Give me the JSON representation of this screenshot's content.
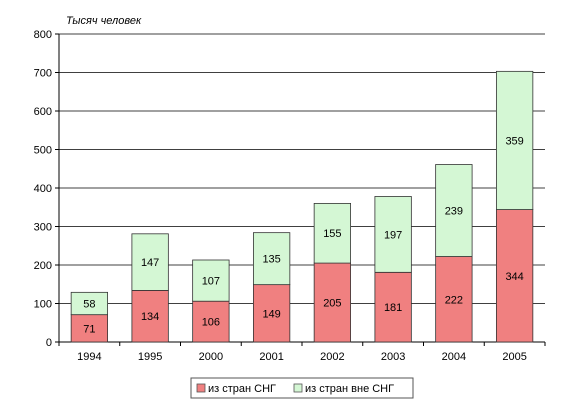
{
  "chart_data": {
    "type": "bar",
    "stacked": true,
    "unit_label": "Тысяч человек",
    "categories": [
      "1994",
      "1995",
      "2000",
      "2001",
      "2002",
      "2003",
      "2004",
      "2005"
    ],
    "series": [
      {
        "name": "из стран СНГ",
        "color": "#f08080",
        "values": [
          71,
          134,
          106,
          149,
          205,
          181,
          222,
          344
        ]
      },
      {
        "name": "из стран вне СНГ",
        "color": "#d4f7d4",
        "values": [
          58,
          147,
          107,
          135,
          155,
          197,
          239,
          359
        ]
      }
    ],
    "ylim": [
      0,
      800
    ],
    "yticks": [
      0,
      100,
      200,
      300,
      400,
      500,
      600,
      700,
      800
    ],
    "grid": true,
    "legend_position": "bottom"
  }
}
